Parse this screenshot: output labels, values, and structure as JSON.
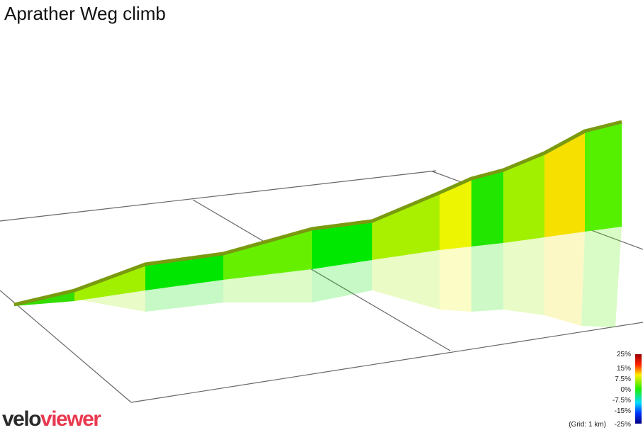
{
  "header": {
    "title": "Aprather Weg climb"
  },
  "legend": {
    "labels": [
      "25%",
      "15%",
      "7.5%",
      "0%",
      "-7.5%",
      "-15%",
      "-25%"
    ],
    "grid_note": "(Grid: 1 km)"
  },
  "logo": {
    "part1": "velo",
    "part2": "viewer"
  }
}
